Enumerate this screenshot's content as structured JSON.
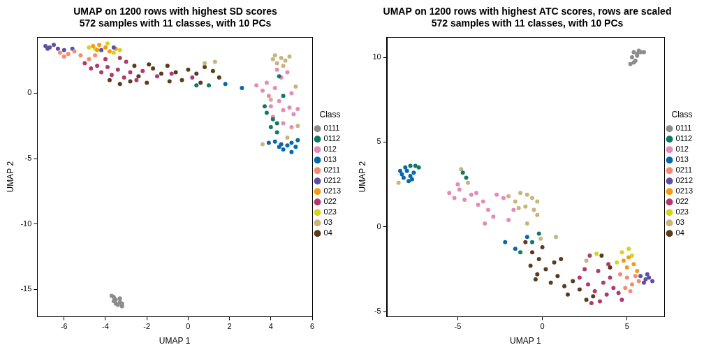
{
  "chart_data": [
    {
      "type": "scatter",
      "title": [
        "UMAP on 1200 rows with highest SD scores",
        "572 samples with 11 classes, with 10 PCs"
      ],
      "x_label": "UMAP 1",
      "y_label": "UMAP 2",
      "legend": "right",
      "legend_title": "Class",
      "grid": false,
      "marker": "circle",
      "xlim": [
        -7.3,
        6.0
      ],
      "xticks": [
        -6,
        -4,
        -2,
        0,
        2,
        4,
        6
      ],
      "ylim": [
        -17.1,
        4.3
      ],
      "yticks": [
        -15,
        -10,
        -5,
        0
      ],
      "series": [
        {
          "name": "0111",
          "color": "#8C8C8C",
          "x": [
            -3.6,
            -3.5,
            -3.3,
            -3.4,
            -3.2,
            -3.6,
            -3.3,
            -3.5,
            -3.7,
            -3.2
          ],
          "y": [
            -15.6,
            -15.8,
            -16.0,
            -16.2,
            -16.3,
            -15.9,
            -15.7,
            -16.1,
            -15.5,
            -16.1
          ]
        },
        {
          "name": "0112",
          "color": "#127A62",
          "x": [
            3.8,
            4.1,
            4.3,
            4.0,
            3.7,
            4.4,
            0.4,
            1.0,
            4.6,
            4.3
          ],
          "y": [
            -1.5,
            -2.0,
            -2.3,
            -2.6,
            -1.0,
            1.3,
            0.6,
            0.6,
            -0.2,
            -3.0
          ]
        },
        {
          "name": "012",
          "color": "#E58BB8",
          "x": [
            3.6,
            3.9,
            4.2,
            4.4,
            4.0,
            4.6,
            4.9,
            5.1,
            5.3,
            4.5,
            4.8,
            4.3,
            5.0,
            3.8,
            4.6,
            5.0,
            3.3,
            4.1
          ],
          "y": [
            0.2,
            -0.2,
            0.4,
            -0.6,
            -1.0,
            -1.3,
            -1.1,
            -1.6,
            -1.2,
            1.2,
            1.6,
            1.8,
            0.0,
            0.8,
            -2.3,
            -2.6,
            0.6,
            -1.8
          ]
        },
        {
          "name": "013",
          "color": "#0868AC",
          "x": [
            4.2,
            4.5,
            4.8,
            5.0,
            4.6,
            5.2,
            4.4,
            3.9,
            1.8,
            2.6,
            5.0,
            5.3
          ],
          "y": [
            -3.7,
            -3.9,
            -4.0,
            -3.8,
            -4.3,
            -4.1,
            -4.1,
            -3.8,
            0.7,
            0.4,
            -4.5,
            -3.6
          ]
        },
        {
          "name": "0211",
          "color": "#F58C70",
          "x": [
            -6.2,
            -5.8,
            -5.5,
            -5.2,
            -4.8,
            -6.0,
            -4.5
          ],
          "y": [
            3.1,
            3.0,
            3.2,
            2.9,
            2.6,
            2.8,
            2.9
          ]
        },
        {
          "name": "0212",
          "color": "#5E4FA2",
          "x": [
            -6.9,
            -6.7,
            -6.5,
            -6.3,
            -6.0,
            -5.6,
            -4.2,
            -3.6,
            -6.8
          ],
          "y": [
            3.6,
            3.5,
            3.7,
            3.4,
            3.3,
            3.4,
            3.3,
            3.5,
            3.4
          ]
        },
        {
          "name": "0213",
          "color": "#F39C12",
          "x": [
            -4.6,
            -4.3,
            -4.0,
            -3.8,
            -4.4,
            -3.5
          ],
          "y": [
            3.6,
            3.7,
            3.5,
            3.2,
            3.3,
            3.4
          ]
        },
        {
          "name": "022",
          "color": "#B03A6E",
          "x": [
            -5.0,
            -4.7,
            -4.4,
            -4.2,
            -3.9,
            -3.7,
            -3.4,
            -3.1,
            -2.8,
            -2.5,
            -3.0,
            -2.2,
            -1.5,
            -0.8,
            0.2,
            -4.0,
            -3.3
          ],
          "y": [
            2.3,
            1.9,
            2.1,
            1.6,
            2.0,
            1.4,
            1.8,
            1.2,
            1.6,
            1.0,
            2.4,
            1.7,
            1.3,
            1.5,
            1.2,
            2.6,
            2.7
          ]
        },
        {
          "name": "023",
          "color": "#D9D21A",
          "x": [
            -4.8,
            -4.5,
            -3.9,
            -3.6,
            -3.3
          ],
          "y": [
            3.5,
            3.4,
            3.8,
            3.1,
            3.3
          ]
        },
        {
          "name": "03",
          "color": "#C9B47F",
          "x": [
            0.8,
            1.3,
            4.2,
            4.5,
            4.7,
            4.3,
            4.6,
            4.9,
            4.1,
            5.3,
            4.8,
            3.6,
            4.0,
            5.2
          ],
          "y": [
            2.3,
            2.4,
            2.9,
            2.7,
            2.5,
            2.3,
            2.1,
            2.8,
            2.6,
            -2.5,
            -3.4,
            -3.9,
            -0.5,
            0.5
          ]
        },
        {
          "name": "04",
          "color": "#5C3B1C",
          "x": [
            -3.8,
            -3.3,
            -2.8,
            -2.4,
            -2.0,
            -1.7,
            -1.3,
            -1.0,
            -0.6,
            -0.3,
            0.0,
            0.4,
            0.8,
            1.2,
            1.5,
            -2.6,
            -1.9,
            0.6,
            -0.9
          ],
          "y": [
            1.0,
            0.7,
            0.9,
            1.3,
            0.8,
            1.9,
            1.5,
            2.1,
            1.6,
            1.0,
            1.8,
            1.5,
            2.0,
            1.7,
            1.2,
            2.1,
            2.2,
            0.8,
            0.9
          ]
        }
      ]
    },
    {
      "type": "scatter",
      "title": [
        "UMAP on 1200 rows with highest ATC scores, rows are scaled",
        "572 samples with 11 classes, with 10 PCs"
      ],
      "x_label": "UMAP 1",
      "y_label": "UMAP 2",
      "legend": "right",
      "legend_title": "Class",
      "grid": false,
      "marker": "circle",
      "xlim": [
        -9.2,
        7.2
      ],
      "xticks": [
        -5,
        0,
        5
      ],
      "ylim": [
        -5.3,
        11.2
      ],
      "yticks": [
        -5,
        0,
        5,
        10
      ],
      "series": [
        {
          "name": "0111",
          "color": "#8C8C8C",
          "x": [
            5.4,
            5.6,
            5.8,
            6.0,
            5.5,
            5.3,
            5.7,
            5.4,
            5.2,
            5.6
          ],
          "y": [
            10.3,
            10.1,
            10.3,
            10.3,
            9.8,
            10.0,
            10.4,
            9.7,
            9.6,
            10.2
          ]
        },
        {
          "name": "0112",
          "color": "#127A62",
          "x": [
            -7.5,
            -7.3,
            -7.8,
            -4.7,
            -4.5,
            -1.3,
            -0.6,
            -0.2
          ],
          "y": [
            3.6,
            3.5,
            3.6,
            3.2,
            2.9,
            -1.5,
            -0.9,
            -0.4
          ]
        },
        {
          "name": "012",
          "color": "#E58BB8",
          "x": [
            -5.5,
            -5.2,
            -4.9,
            -4.6,
            -4.2,
            -3.9,
            -3.5,
            -3.2,
            -2.9,
            -3.4,
            -2.7,
            -2.3,
            -3.8,
            -2.0,
            -5.0,
            -1.7
          ],
          "y": [
            2.0,
            1.7,
            2.2,
            1.6,
            1.9,
            2.0,
            1.5,
            1.0,
            0.6,
            0.2,
            1.9,
            1.7,
            1.3,
            0.4,
            2.5,
            1.0
          ]
        },
        {
          "name": "013",
          "color": "#0868AC",
          "x": [
            -8.3,
            -8.0,
            -7.8,
            -8.2,
            -7.9,
            -7.6,
            -8.1,
            -7.7,
            -8.4,
            -1.6,
            -2.2,
            -0.9
          ],
          "y": [
            3.1,
            3.3,
            3.0,
            2.9,
            2.7,
            3.2,
            3.5,
            2.8,
            3.3,
            -1.3,
            -0.9,
            -0.6
          ]
        },
        {
          "name": "0211",
          "color": "#F58C70",
          "x": [
            4.6,
            5.0,
            5.3,
            5.7,
            5.2,
            4.9,
            5.5
          ],
          "y": [
            -2.8,
            -3.0,
            -3.4,
            -3.2,
            -3.8,
            -3.6,
            -2.9
          ]
        },
        {
          "name": "0212",
          "color": "#5E4FA2",
          "x": [
            5.8,
            6.1,
            6.3,
            6.5,
            6.0,
            6.2
          ],
          "y": [
            -2.9,
            -3.1,
            -3.0,
            -3.2,
            -3.3,
            -2.8
          ]
        },
        {
          "name": "0213",
          "color": "#F39C12",
          "x": [
            4.8,
            5.1,
            5.4,
            5.6,
            5.0
          ],
          "y": [
            -2.0,
            -1.8,
            -2.2,
            -2.6,
            -2.4
          ]
        },
        {
          "name": "022",
          "color": "#B03A6E",
          "x": [
            2.2,
            2.7,
            3.1,
            3.4,
            3.8,
            4.2,
            4.5,
            2.9,
            3.3,
            4.0,
            2.5,
            3.6,
            4.7,
            2.8,
            3.9
          ],
          "y": [
            -3.0,
            -3.4,
            -3.8,
            -4.4,
            -4.0,
            -3.6,
            -3.9,
            -4.5,
            -2.6,
            -3.0,
            -2.5,
            -3.3,
            -4.3,
            -1.7,
            -2.2
          ]
        },
        {
          "name": "023",
          "color": "#D9D21A",
          "x": [
            3.2,
            4.4,
            4.7,
            5.1,
            5.3
          ],
          "y": [
            -1.6,
            -2.1,
            -1.5,
            -1.3,
            -1.7
          ]
        },
        {
          "name": "03",
          "color": "#C9B47F",
          "x": [
            -8.5,
            -4.8,
            -4.4,
            -2.0,
            -1.6,
            -1.3,
            -0.9,
            -0.6,
            -0.3,
            -1.0,
            -1.4,
            -0.5,
            -0.9,
            -0.3,
            -0.1,
            0.8,
            2.6
          ],
          "y": [
            2.6,
            3.4,
            2.6,
            1.8,
            1.5,
            2.0,
            1.9,
            1.7,
            1.5,
            1.2,
            1.1,
            1.0,
            0.2,
            0.7,
            -0.7,
            -0.6,
            -2.0
          ]
        },
        {
          "name": "04",
          "color": "#5C3B1C",
          "x": [
            -1.0,
            -0.6,
            -0.2,
            -0.7,
            -0.3,
            0.2,
            0.5,
            -0.4,
            0.9,
            1.3,
            1.8,
            2.2,
            1.5,
            2.6,
            3.0,
            0.0,
            0.7,
            1.1,
            4.0,
            3.5
          ],
          "y": [
            -0.9,
            -1.5,
            -1.9,
            -2.3,
            -2.8,
            -2.5,
            -3.3,
            -3.1,
            -2.9,
            -3.5,
            -3.2,
            -3.7,
            -4.0,
            -4.3,
            -4.1,
            -1.2,
            -2.1,
            -1.9,
            -2.4,
            -1.7
          ]
        }
      ]
    }
  ]
}
